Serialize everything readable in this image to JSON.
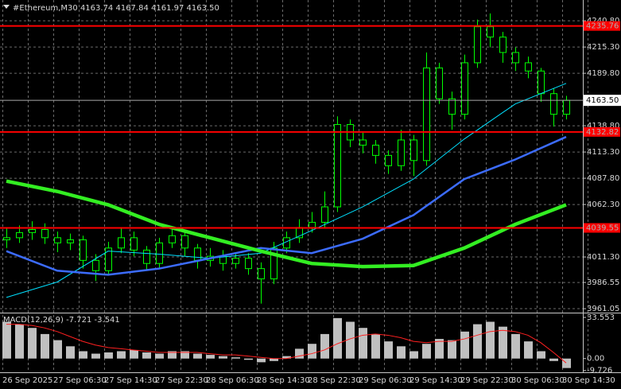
{
  "chart_data": [
    {
      "type": "candlestick",
      "title": "#Ethereum,M30  4163.74 4167.84 4161.97 4163.50",
      "open": [
        4028,
        4030,
        4035,
        4038,
        4030,
        4025,
        4028,
        4008,
        3998,
        4020,
        4030,
        4018,
        4005,
        4025,
        4032,
        4020,
        4008,
        4012,
        4005,
        4010,
        4000,
        3990,
        4020,
        4030,
        4040,
        4045,
        4060,
        4140,
        4125,
        4120,
        4110,
        4100,
        4125,
        4105,
        4195,
        4165,
        4150,
        4200,
        4235,
        4225,
        4210,
        4200,
        4192,
        4170,
        4150
      ],
      "high": [
        4040,
        4042,
        4046,
        4044,
        4036,
        4034,
        4032,
        4014,
        4026,
        4040,
        4036,
        4022,
        4030,
        4040,
        4036,
        4024,
        4020,
        4018,
        4016,
        4015,
        4006,
        4026,
        4036,
        4048,
        4055,
        4075,
        4148,
        4145,
        4132,
        4125,
        4115,
        4135,
        4130,
        4210,
        4200,
        4172,
        4208,
        4242,
        4248,
        4230,
        4215,
        4206,
        4195,
        4175,
        4167.84
      ],
      "low": [
        4020,
        4025,
        4028,
        4024,
        4016,
        4018,
        4000,
        3988,
        3994,
        4015,
        4012,
        3998,
        4000,
        4020,
        4012,
        4000,
        4002,
        3998,
        4000,
        3994,
        3966,
        3985,
        4015,
        4025,
        4035,
        4040,
        4055,
        4118,
        4112,
        4102,
        4092,
        4095,
        4090,
        4100,
        4160,
        4135,
        4145,
        4195,
        4215,
        4200,
        4192,
        4185,
        4162,
        4138,
        4145
      ],
      "close": [
        4030,
        4035,
        4038,
        4030,
        4025,
        4028,
        4008,
        3998,
        4020,
        4030,
        4018,
        4005,
        4025,
        4032,
        4020,
        4008,
        4012,
        4005,
        4010,
        4000,
        3990,
        4020,
        4030,
        4040,
        4045,
        4060,
        4140,
        4125,
        4120,
        4110,
        4100,
        4125,
        4105,
        4195,
        4165,
        4150,
        4200,
        4235,
        4225,
        4210,
        4200,
        4192,
        4170,
        4150,
        4163.5
      ],
      "color": "#00ff00",
      "ylim": [
        3958,
        4261
      ],
      "yticks": [
        {
          "value": 4240.8,
          "label": "4240.80"
        },
        {
          "value": 4215.3,
          "label": "4215.30"
        },
        {
          "value": 4189.8,
          "label": "4189.80"
        },
        {
          "value": 4138.8,
          "label": "4138.80"
        },
        {
          "value": 4113.3,
          "label": "4113.30"
        },
        {
          "value": 4087.8,
          "label": "4087.80"
        },
        {
          "value": 4062.3,
          "label": "4062.30"
        },
        {
          "value": 4011.3,
          "label": "4011.30"
        },
        3986.55,
        3961.05
      ],
      "grid": true,
      "levels": [
        4235.76,
        4132.82,
        4039.55
      ],
      "level_color": "#ff0000",
      "last_price": {
        "value": 4163.5,
        "label": "4163.50"
      },
      "moving_averages": [
        {
          "color": "#00e0ff",
          "width": 1,
          "values": [
            3972,
            3987,
            4017,
            4014,
            4010,
            4015,
            4037,
            4060,
            4087,
            4126,
            4160,
            4180
          ]
        },
        {
          "color": "#3c6cff",
          "width": 2.5,
          "values": [
            4017,
            3998,
            3994,
            4000,
            4010,
            4020,
            4015,
            4029,
            4052,
            4087,
            4106,
            4128
          ]
        },
        {
          "color": "#33ee22",
          "width": 4.5,
          "values": [
            4085,
            4075,
            4062,
            4043,
            4030,
            4017,
            4005,
            4002,
            4003,
            4020,
            4043,
            4062
          ]
        }
      ],
      "time_labels": [
        "26 Sep 2025",
        "27 Sep 06:30",
        "27 Sep 14:30",
        "27 Sep 22:30",
        "28 Sep 06:30",
        "28 Sep 14:30",
        "28 Sep 22:30",
        "29 Sep 06:30",
        "29 Sep 14:30",
        "29 Sep 22:30",
        "30 Sep 06:30",
        "30 Sep 14:30"
      ]
    },
    {
      "type": "macd",
      "title": "MACD(12,26,9) -7.721 -3.541",
      "histogram": [
        30,
        28,
        25,
        20,
        15,
        10,
        6,
        4,
        5,
        6,
        7,
        5,
        4,
        6,
        6,
        4,
        3,
        2,
        1,
        -1,
        -3,
        -2,
        2,
        8,
        12,
        20,
        33,
        30,
        25,
        20,
        14,
        10,
        6,
        12,
        16,
        15,
        22,
        28,
        30,
        26,
        20,
        14,
        6,
        -2,
        -7.721
      ],
      "signal": [
        28,
        28,
        27,
        25,
        22,
        18,
        14,
        11,
        9,
        8,
        7,
        6,
        5,
        5,
        5,
        5,
        4,
        3,
        3,
        2,
        1,
        0,
        0,
        2,
        4,
        7,
        12,
        16,
        19,
        20,
        19,
        17,
        14,
        13,
        14,
        14,
        16,
        19,
        22,
        23,
        22,
        19,
        13,
        5,
        -3.541
      ],
      "histogram_color": "#c0c0c0",
      "signal_color": "#ff2020",
      "ylim": [
        -11.2,
        36.8
      ],
      "yticks": [
        33.553,
        {
          "value": 0,
          "label": "0.00"
        },
        -9.726
      ]
    }
  ]
}
